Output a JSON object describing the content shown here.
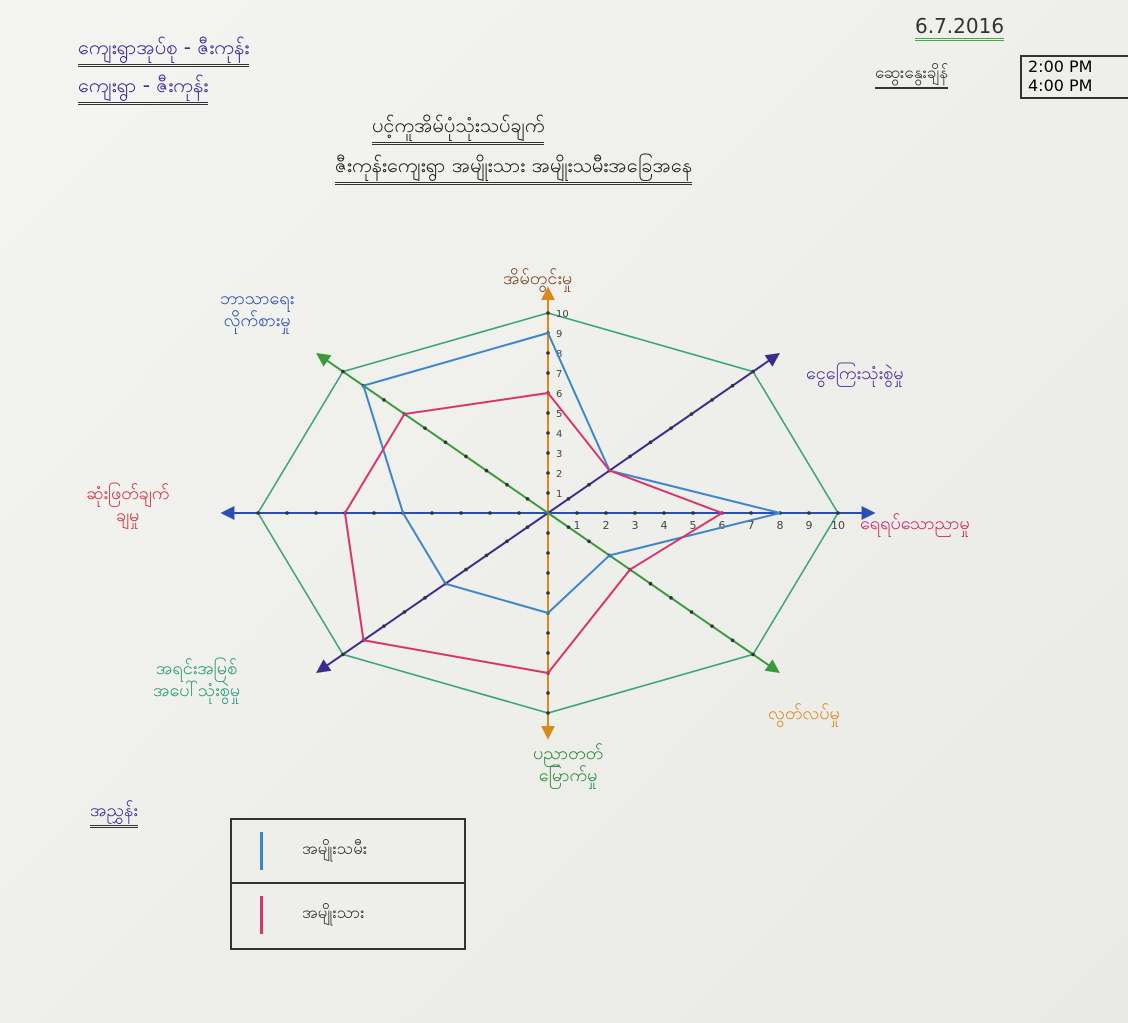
{
  "header": {
    "group": "ကျေးရွာအုပ်စု - ဇီးကုန်း",
    "village": "ကျေးရွာ - ဇီးကုန်း",
    "date": "6.7.2016",
    "time_label": "ဆွေးနွေးချိန်",
    "time_start": "2:00 PM",
    "time_end": "4:00 PM",
    "title": "ပင့်ကူအိမ်ပုံသုံးသပ်ချက်",
    "subtitle": "ဇီးကုန်းကျေးရွာ အမျိုးသား အမျိုးသမီးအခြေအနေ"
  },
  "chart_data": {
    "type": "radar",
    "categories": [
      "အိမ်တွင်းမှု",
      "ငွေကြေးသုံးစွဲမှု",
      "ရေရပ်သောညာမှု",
      "လွတ်လပ်မှု",
      "ပညာတတ်\nမြောက်မှု",
      "အရင်းအမြစ်\nအပေါ်သုံးစွဲမှု",
      "ဆုံးဖြတ်ချက်\nချမှု",
      "ဘာသာရေး\nလိုက်စားမှု"
    ],
    "series": [
      {
        "name": "အမျိုးသမီး",
        "color": "#3a86c8",
        "values": [
          9,
          3,
          8,
          3,
          5,
          5,
          5,
          9
        ]
      },
      {
        "name": "အမျိုးသား",
        "color": "#d8336e",
        "values": [
          6,
          3,
          6,
          4,
          8,
          9,
          7,
          7
        ]
      }
    ],
    "rlim": [
      0,
      10
    ],
    "rticks": [
      1,
      2,
      3,
      4,
      5,
      6,
      7,
      8,
      9,
      10
    ],
    "axis_colors": [
      "#d98a1c",
      "#3b2a8c",
      "#2a4fb0",
      "#3a9a3a",
      "#d98a1c",
      "#3b2a8c",
      "#2a4fb0",
      "#3a9a3a"
    ],
    "label_colors": [
      "#7a4a2a",
      "#4a2a9c",
      "#d0246a",
      "#d98a1c",
      "#2a8a3a",
      "#2a9a7a",
      "#d83040",
      "#2a4fb0"
    ],
    "grid_color": "#3aa37a"
  },
  "legend": {
    "title": "အညွှန်း"
  }
}
